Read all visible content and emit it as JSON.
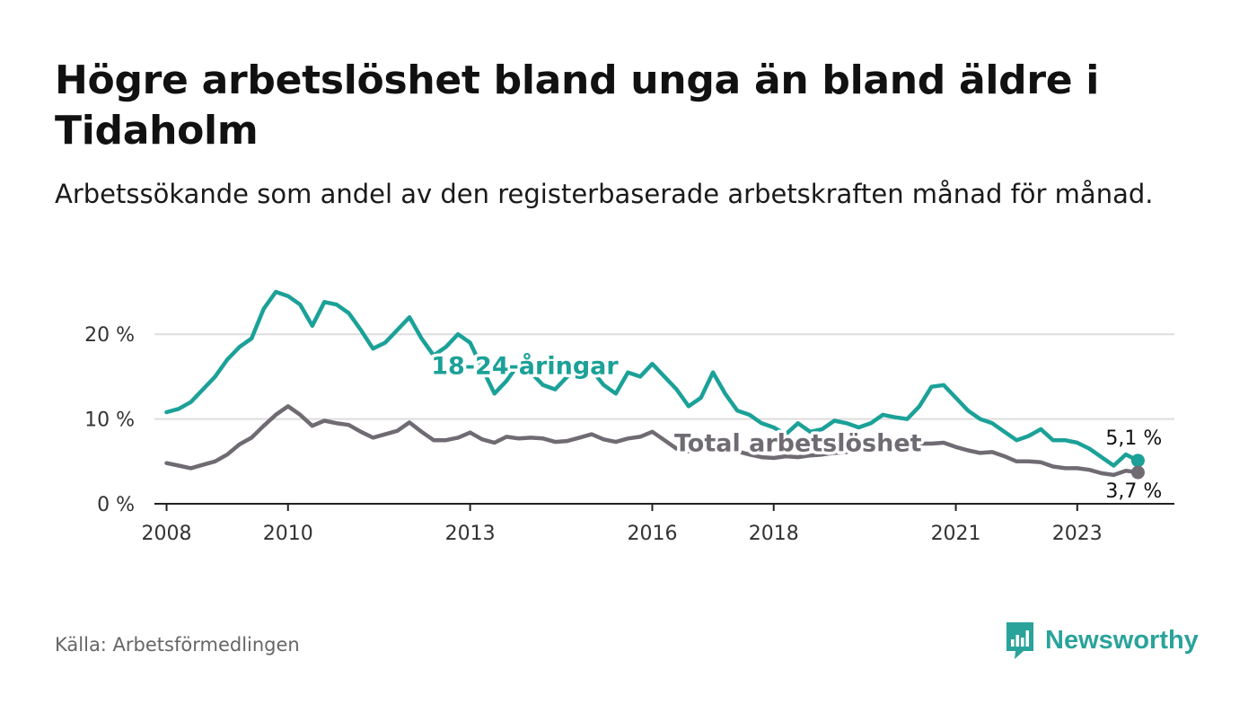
{
  "title": "Högre arbetslöshet bland unga än bland äldre i Tidaholm",
  "subtitle": "Arbetssökande som andel av den registerbaserade arbetskraften månad för månad.",
  "source": "Källa: Arbetsförmedlingen",
  "brand": {
    "name": "Newsworthy",
    "icon": "newsworthy-logo-icon"
  },
  "colors": {
    "youth": "#1ba198",
    "total": "#706b73",
    "grid": "#dddddd",
    "axis": "#222222",
    "text": "#333333"
  },
  "chart_data": {
    "type": "line",
    "title": "Högre arbetslöshet bland unga än bland äldre i Tidaholm",
    "xlabel": "",
    "ylabel": "",
    "xlim": [
      2007.8,
      2024.6
    ],
    "ylim": [
      0,
      25
    ],
    "grid": true,
    "y_ticks": [
      {
        "value": 0,
        "label": "0 %"
      },
      {
        "value": 10,
        "label": "10 %"
      },
      {
        "value": 20,
        "label": "20 %"
      }
    ],
    "x_ticks": [
      {
        "value": 2008,
        "label": "2008"
      },
      {
        "value": 2010,
        "label": "2010"
      },
      {
        "value": 2013,
        "label": "2013"
      },
      {
        "value": 2016,
        "label": "2016"
      },
      {
        "value": 2018,
        "label": "2018"
      },
      {
        "value": 2021,
        "label": "2021"
      },
      {
        "value": 2023,
        "label": "2023"
      }
    ],
    "series": [
      {
        "name": "18-24-åringar",
        "color": "#1ba198",
        "end_label": "5,1 %",
        "x": [
          2008.0,
          2008.2,
          2008.4,
          2008.6,
          2008.8,
          2009.0,
          2009.2,
          2009.4,
          2009.6,
          2009.8,
          2010.0,
          2010.2,
          2010.4,
          2010.6,
          2010.8,
          2011.0,
          2011.2,
          2011.4,
          2011.6,
          2011.8,
          2012.0,
          2012.2,
          2012.4,
          2012.6,
          2012.8,
          2013.0,
          2013.2,
          2013.4,
          2013.6,
          2013.8,
          2014.0,
          2014.2,
          2014.4,
          2014.6,
          2014.8,
          2015.0,
          2015.2,
          2015.4,
          2015.6,
          2015.8,
          2016.0,
          2016.2,
          2016.4,
          2016.6,
          2016.8,
          2017.0,
          2017.2,
          2017.4,
          2017.6,
          2017.8,
          2018.0,
          2018.2,
          2018.4,
          2018.6,
          2018.8,
          2019.0,
          2019.2,
          2019.4,
          2019.6,
          2019.8,
          2020.0,
          2020.2,
          2020.4,
          2020.6,
          2020.8,
          2021.0,
          2021.2,
          2021.4,
          2021.6,
          2021.8,
          2022.0,
          2022.2,
          2022.4,
          2022.6,
          2022.8,
          2023.0,
          2023.2,
          2023.4,
          2023.6,
          2023.8,
          2024.0
        ],
        "values": [
          10.8,
          11.2,
          12.0,
          13.5,
          15.0,
          17.0,
          18.5,
          19.5,
          23.0,
          25.0,
          24.5,
          23.5,
          21.0,
          23.8,
          23.5,
          22.5,
          20.5,
          18.3,
          19.0,
          20.5,
          22.0,
          19.5,
          17.5,
          18.5,
          20.0,
          19.0,
          16.0,
          13.0,
          14.5,
          16.5,
          15.5,
          14.0,
          13.5,
          15.0,
          16.0,
          15.8,
          14.0,
          13.0,
          15.5,
          15.0,
          16.5,
          15.0,
          13.5,
          11.5,
          12.5,
          15.5,
          13.0,
          11.0,
          10.5,
          9.5,
          9.0,
          8.2,
          9.5,
          8.5,
          8.8,
          9.8,
          9.5,
          9.0,
          9.5,
          10.5,
          10.2,
          10.0,
          11.5,
          13.8,
          14.0,
          12.5,
          11.0,
          10.0,
          9.5,
          8.5,
          7.5,
          8.0,
          8.8,
          7.5,
          7.5,
          7.2,
          6.5,
          5.5,
          4.5,
          5.8,
          5.1
        ]
      },
      {
        "name": "Total arbetslöshet",
        "color": "#706b73",
        "end_label": "3,7 %",
        "x": [
          2008.0,
          2008.2,
          2008.4,
          2008.6,
          2008.8,
          2009.0,
          2009.2,
          2009.4,
          2009.6,
          2009.8,
          2010.0,
          2010.2,
          2010.4,
          2010.6,
          2010.8,
          2011.0,
          2011.2,
          2011.4,
          2011.6,
          2011.8,
          2012.0,
          2012.2,
          2012.4,
          2012.6,
          2012.8,
          2013.0,
          2013.2,
          2013.4,
          2013.6,
          2013.8,
          2014.0,
          2014.2,
          2014.4,
          2014.6,
          2014.8,
          2015.0,
          2015.2,
          2015.4,
          2015.6,
          2015.8,
          2016.0,
          2016.2,
          2016.4,
          2016.6,
          2016.8,
          2017.0,
          2017.2,
          2017.4,
          2017.6,
          2017.8,
          2018.0,
          2018.2,
          2018.4,
          2018.6,
          2018.8,
          2019.0,
          2019.2,
          2019.4,
          2019.6,
          2019.8,
          2020.0,
          2020.2,
          2020.4,
          2020.6,
          2020.8,
          2021.0,
          2021.2,
          2021.4,
          2021.6,
          2021.8,
          2022.0,
          2022.2,
          2022.4,
          2022.6,
          2022.8,
          2023.0,
          2023.2,
          2023.4,
          2023.6,
          2023.8,
          2024.0
        ],
        "values": [
          4.8,
          4.5,
          4.2,
          4.6,
          5.0,
          5.8,
          7.0,
          7.8,
          9.2,
          10.5,
          11.5,
          10.5,
          9.2,
          9.8,
          9.5,
          9.3,
          8.5,
          7.8,
          8.2,
          8.6,
          9.6,
          8.5,
          7.5,
          7.5,
          7.8,
          8.4,
          7.6,
          7.2,
          7.9,
          7.7,
          7.8,
          7.7,
          7.3,
          7.4,
          7.8,
          8.2,
          7.6,
          7.3,
          7.7,
          7.9,
          8.5,
          7.5,
          6.5,
          6.2,
          6.5,
          7.0,
          6.7,
          6.2,
          5.8,
          5.5,
          5.4,
          5.6,
          5.5,
          5.7,
          5.8,
          6.0,
          6.1,
          6.5,
          6.9,
          7.0,
          7.1,
          7.0,
          7.1,
          7.1,
          7.2,
          6.7,
          6.3,
          6.0,
          6.1,
          5.6,
          5.0,
          5.0,
          4.9,
          4.4,
          4.2,
          4.2,
          4.0,
          3.6,
          3.4,
          3.9,
          3.7
        ]
      }
    ],
    "annotations": [
      {
        "text": "18-24-åringar",
        "series": "18-24-åringar",
        "x": 2013.9,
        "y": 15.3
      },
      {
        "text": "Total arbetslöshet",
        "series": "Total arbetslöshet",
        "x": 2018.4,
        "y": 6.2
      }
    ]
  }
}
